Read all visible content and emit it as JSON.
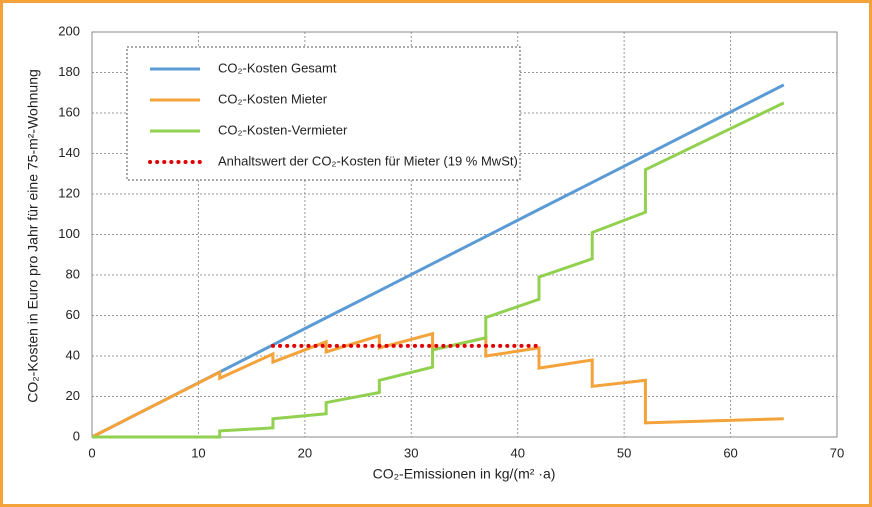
{
  "chart_data": {
    "type": "line",
    "xlabel": "CO₂-Emissionen in kg/(m² ·a)",
    "ylabel": "CO₂-Kosten in Euro pro Jahr für eine 75-m²-Wohnung",
    "x": [
      0,
      12,
      12,
      17,
      17,
      22,
      22,
      27,
      27,
      32,
      32,
      37,
      37,
      42,
      42,
      47,
      47,
      52,
      52,
      65
    ],
    "series": [
      {
        "name": "CO₂-Kosten Gesamt",
        "color": "#5b9bd5",
        "style": "solid",
        "values": [
          0,
          32.1,
          32.1,
          45.5,
          45.5,
          58.9,
          58.9,
          72.2,
          72.2,
          85.6,
          85.6,
          99,
          99,
          112.4,
          112.4,
          125.7,
          125.7,
          139.1,
          139.1,
          173.9
        ]
      },
      {
        "name": "CO₂-Kosten Mieter",
        "color": "#f4a23a",
        "style": "solid",
        "values": [
          0,
          32,
          29,
          41,
          37,
          47,
          42,
          50,
          44,
          51,
          43,
          49,
          40,
          44,
          34,
          38,
          25,
          28,
          7,
          9
        ]
      },
      {
        "name": "CO₂-Kosten-Vermieter",
        "color": "#92d050",
        "style": "solid",
        "values": [
          0,
          0,
          3,
          4.5,
          9,
          11.5,
          17,
          22,
          28,
          34.5,
          43,
          49,
          59,
          68,
          79,
          88,
          101,
          111,
          132,
          165
        ]
      },
      {
        "name": "Anhaltswert der CO₂-Kosten für Mieter (19 % MwSt)",
        "color": "#e00000",
        "style": "dotted",
        "values": [
          null,
          null,
          null,
          45,
          45,
          45,
          45,
          45,
          45,
          45,
          45,
          45,
          45,
          45,
          45,
          null,
          null,
          null,
          null,
          null
        ]
      }
    ],
    "xlim": [
      0,
      70
    ],
    "xticks": [
      0,
      10,
      20,
      30,
      40,
      50,
      60,
      70
    ],
    "ylim": [
      0,
      200
    ],
    "yticks": [
      0,
      20,
      40,
      60,
      80,
      100,
      120,
      140,
      160,
      180,
      200
    ],
    "grid": true
  }
}
